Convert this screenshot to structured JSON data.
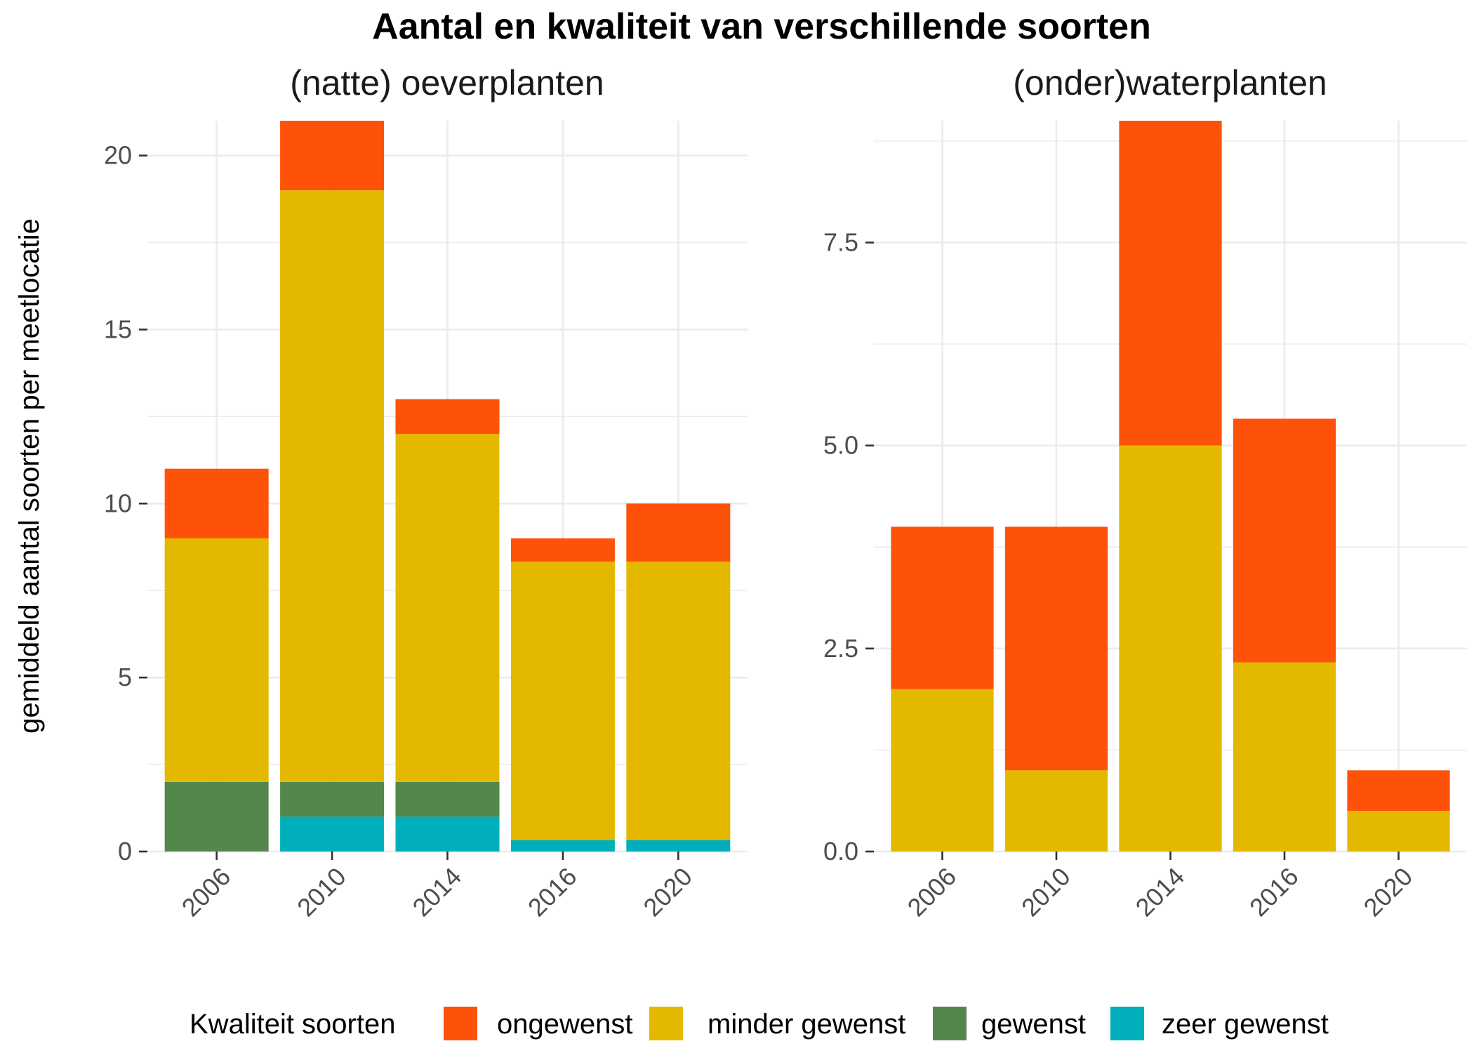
{
  "title": "Aantal en kwaliteit van verschillende soorten",
  "y_axis_title": "gemiddeld aantal soorten per meetlocatie",
  "legend": {
    "title": "Kwaliteit soorten",
    "items": [
      {
        "label": "ongewenst",
        "color": "#FF5209"
      },
      {
        "label": "minder gewenst",
        "color": "#E5B800"
      },
      {
        "label": "gewenst",
        "color": "#53874C"
      },
      {
        "label": "zeer gewenst",
        "color": "#00AFBB"
      }
    ]
  },
  "chart_data": [
    {
      "type": "bar",
      "stacked": true,
      "title": "(natte) oeverplanten",
      "categories": [
        "2006",
        "2010",
        "2014",
        "2016",
        "2020"
      ],
      "ylim": [
        0,
        21
      ],
      "yticks": [
        0,
        5,
        10,
        15,
        20
      ],
      "ytick_labels": [
        "0",
        "5",
        "10",
        "15",
        "20"
      ],
      "series": [
        {
          "name": "zeer gewenst",
          "values": [
            0,
            1,
            1,
            0.33,
            0.33
          ]
        },
        {
          "name": "gewenst",
          "values": [
            2,
            1,
            1,
            0,
            0
          ]
        },
        {
          "name": "minder gewenst",
          "values": [
            7,
            17,
            10,
            8,
            8
          ]
        },
        {
          "name": "ongewenst",
          "values": [
            2,
            2,
            1,
            0.67,
            1.67
          ]
        }
      ]
    },
    {
      "type": "bar",
      "stacked": true,
      "title": "(onder)waterplanten",
      "categories": [
        "2006",
        "2010",
        "2014",
        "2016",
        "2020"
      ],
      "ylim": [
        0,
        9
      ],
      "yticks": [
        0,
        2.5,
        5,
        7.5
      ],
      "ytick_labels": [
        "0.0",
        "2.5",
        "5.0",
        "7.5"
      ],
      "series": [
        {
          "name": "zeer gewenst",
          "values": [
            0,
            0,
            0,
            0,
            0
          ]
        },
        {
          "name": "gewenst",
          "values": [
            0,
            0,
            0,
            0,
            0
          ]
        },
        {
          "name": "minder gewenst",
          "values": [
            2,
            1,
            5,
            2.33,
            0.5
          ]
        },
        {
          "name": "ongewenst",
          "values": [
            2,
            3,
            4,
            3,
            0.5
          ]
        }
      ]
    }
  ]
}
